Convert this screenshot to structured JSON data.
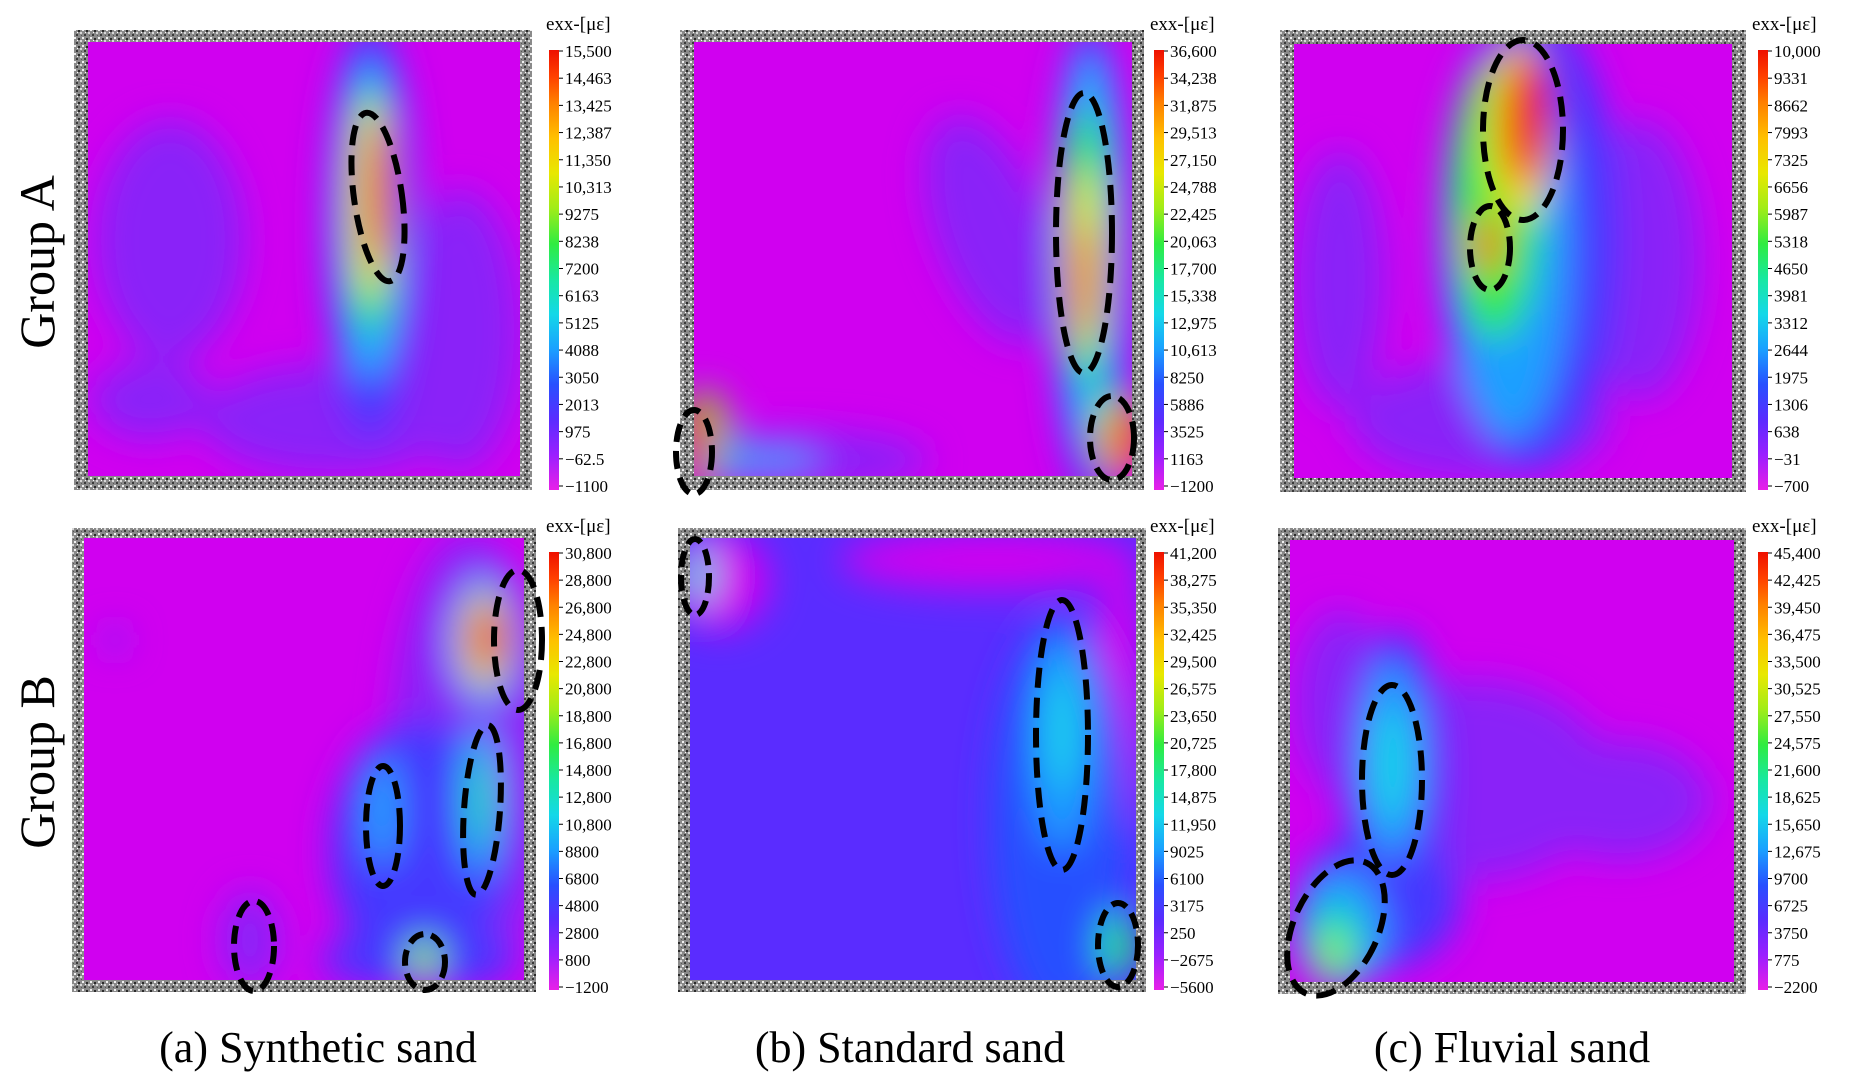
{
  "figure": {
    "row_labels": [
      "Group A",
      "Group B"
    ],
    "column_captions": [
      "(a) Synthetic sand",
      "(b) Standard sand",
      "(c) Fluvial sand"
    ],
    "colors": {
      "background": "#d000f0",
      "frame_speckle": "#8a8a8a",
      "ellipse": "#000000"
    },
    "colorbar_colors": [
      "#e820e8",
      "#9a20ff",
      "#5a2cff",
      "#2850ff",
      "#1aa0ff",
      "#14d8e8",
      "#18e8a0",
      "#30ec40",
      "#a0ec18",
      "#e8e800",
      "#ffc000",
      "#ff8000",
      "#ff4000",
      "#ee1000"
    ],
    "panels": [
      {
        "id": "a-group-a",
        "colorbar": {
          "title": "exx-[με]",
          "ticks": [
            "15,500",
            "14,463",
            "13,425",
            "12,387",
            "11,350",
            "10,313",
            "9275",
            "8238",
            "7200",
            "6163",
            "5125",
            "4088",
            "3050",
            "2013",
            "975",
            "−62.5",
            "−1100"
          ]
        },
        "ellipses": 1
      },
      {
        "id": "b-group-a",
        "colorbar": {
          "title": "exx-[με]",
          "ticks": [
            "36,600",
            "34,238",
            "31,875",
            "29,513",
            "27,150",
            "24,788",
            "22,425",
            "20,063",
            "17,700",
            "15,338",
            "12,975",
            "10,613",
            "8250",
            "5886",
            "3525",
            "1163",
            "−1200"
          ]
        },
        "ellipses": 3
      },
      {
        "id": "c-group-a",
        "colorbar": {
          "title": "exx-[με]",
          "ticks": [
            "10,000",
            "9331",
            "8662",
            "7993",
            "7325",
            "6656",
            "5987",
            "5318",
            "4650",
            "3981",
            "3312",
            "2644",
            "1975",
            "1306",
            "638",
            "−31",
            "−700"
          ]
        },
        "ellipses": 2
      },
      {
        "id": "a-group-b",
        "colorbar": {
          "title": "exx-[με]",
          "ticks": [
            "30,800",
            "28,800",
            "26,800",
            "24,800",
            "22,800",
            "20,800",
            "18,800",
            "16,800",
            "14,800",
            "12,800",
            "10,800",
            "8800",
            "6800",
            "4800",
            "2800",
            "800",
            "−1200"
          ]
        },
        "ellipses": 5
      },
      {
        "id": "b-group-b",
        "colorbar": {
          "title": "exx-[με]",
          "ticks": [
            "41,200",
            "38,275",
            "35,350",
            "32,425",
            "29,500",
            "26,575",
            "23,650",
            "20,725",
            "17,800",
            "14,875",
            "11,950",
            "9025",
            "6100",
            "3175",
            "250",
            "−2675",
            "−5600"
          ]
        },
        "ellipses": 3
      },
      {
        "id": "c-group-b",
        "colorbar": {
          "title": "exx-[με]",
          "ticks": [
            "45,400",
            "42,425",
            "39,450",
            "36,475",
            "33,500",
            "30,525",
            "27,550",
            "24,575",
            "21,600",
            "18,625",
            "15,650",
            "12,675",
            "9700",
            "6725",
            "3750",
            "775",
            "−2200"
          ]
        },
        "ellipses": 2
      }
    ]
  }
}
